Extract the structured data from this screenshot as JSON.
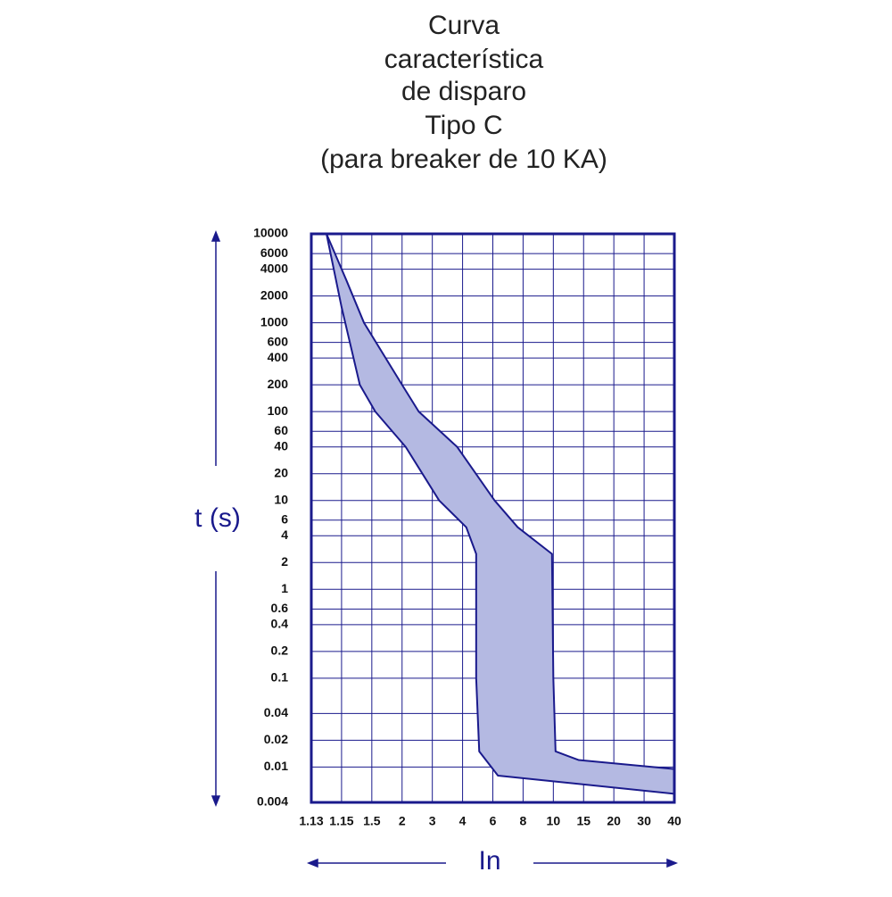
{
  "chart_data": {
    "type": "area",
    "title": [
      "Curva",
      "característica",
      "de disparo",
      "Tipo C",
      "(para breaker de 10 KA)"
    ],
    "y_label": "t (s)",
    "x_label": "In",
    "color": "#1a1a8c",
    "fill": "#b4b9e2",
    "y_log": true,
    "grid": true,
    "ylim": [
      0.004,
      10000
    ],
    "yticks": [
      10000,
      6000,
      4000,
      2000,
      1000,
      600,
      400,
      200,
      100,
      60,
      40,
      20,
      10,
      6,
      4,
      2,
      1,
      0.6,
      0.4,
      0.2,
      0.1,
      0.04,
      0.02,
      0.01,
      0.004
    ],
    "xlim": [
      1.13,
      40
    ],
    "xticks": [
      1.13,
      1.15,
      1.5,
      2,
      3,
      4,
      6,
      8,
      10,
      15,
      20,
      30,
      40
    ],
    "band": {
      "left": {
        "x": [
          1.14,
          1.15,
          1.35,
          1.55,
          2.1,
          3.2,
          4.2,
          4.8,
          4.8,
          5.0,
          6.3,
          40
        ],
        "y": [
          10000,
          1500,
          200,
          100,
          40,
          10,
          5,
          2.5,
          0.1,
          0.015,
          0.008,
          0.005
        ]
      },
      "right": {
        "x": [
          1.14,
          1.2,
          1.4,
          2,
          2.5,
          3.8,
          6.1,
          7.6,
          9.9,
          10,
          10.3,
          14,
          40
        ],
        "y": [
          10000,
          3000,
          1000,
          200,
          100,
          40,
          10,
          5,
          2.5,
          0.1,
          0.015,
          0.012,
          0.0095
        ]
      }
    }
  }
}
